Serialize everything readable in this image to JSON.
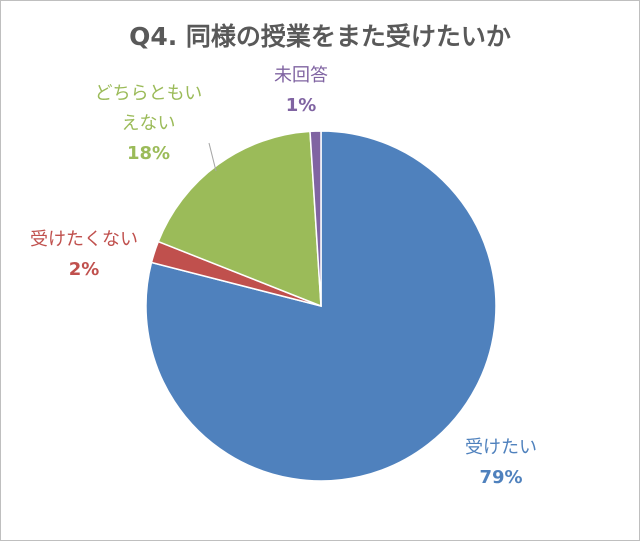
{
  "chart_data": {
    "type": "pie",
    "title": "Q4. 同様の授業をまた受けたいか",
    "categories": [
      "受けたい",
      "受けたくない",
      "どちらともいえない",
      "未回答"
    ],
    "values": [
      79,
      2,
      18,
      1
    ],
    "value_labels": [
      "79%",
      "2%",
      "18%",
      "1%"
    ],
    "colors": [
      "#4f81bd",
      "#c0504d",
      "#9bbb59",
      "#8064a2"
    ]
  }
}
